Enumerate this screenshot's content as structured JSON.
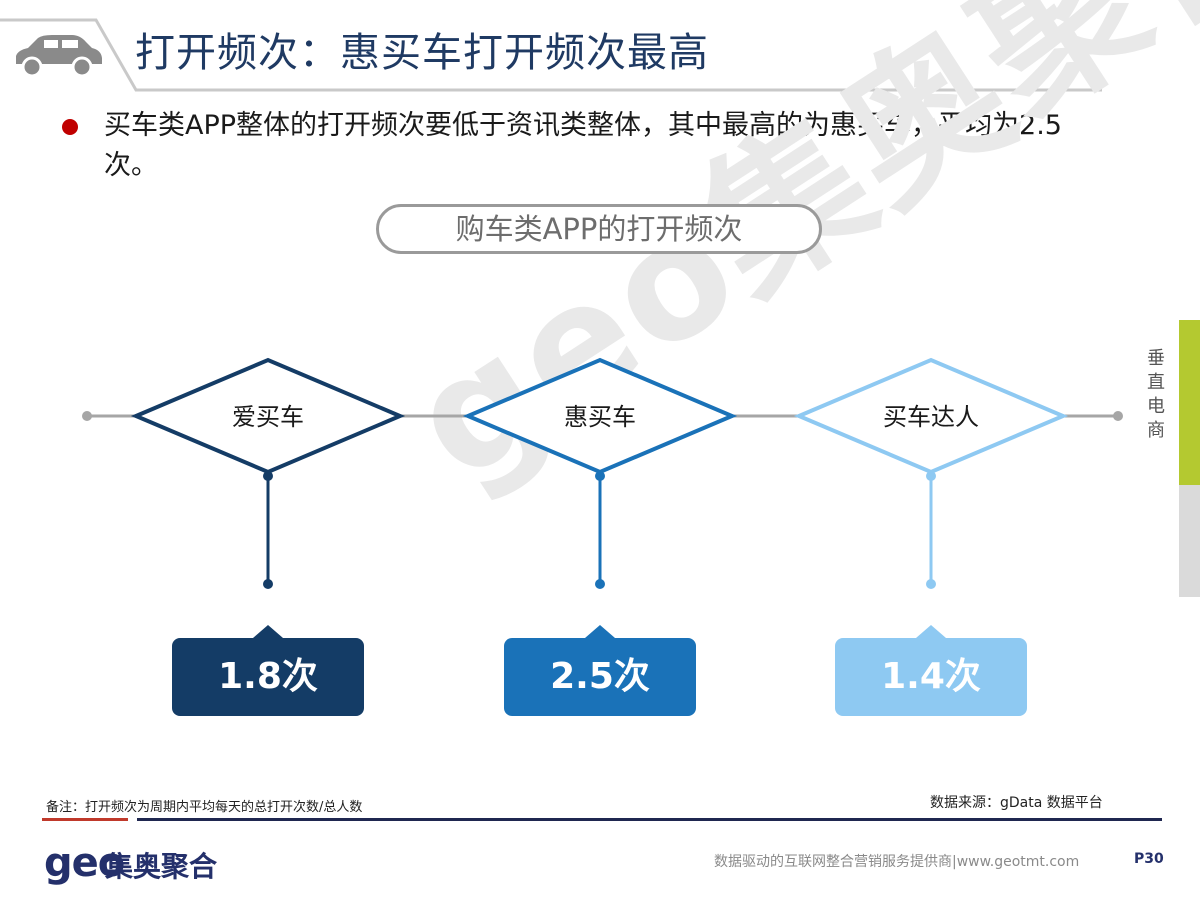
{
  "header": {
    "title": "打开频次：惠买车打开频次最高"
  },
  "bullet": {
    "text": "买车类APP整体的打开频次要低于资讯类整体，其中最高的为惠买车，平均为2.5次。"
  },
  "chart_title": "购车类APP的打开频次",
  "watermark": "geo集奥聚合",
  "chart_data": {
    "type": "table",
    "categories": [
      "爱买车",
      "惠买车",
      "买车达人"
    ],
    "values": [
      1.8,
      2.5,
      1.4
    ],
    "value_labels": [
      "1.8次",
      "2.5次",
      "1.4次"
    ],
    "colors": [
      "#143c66",
      "#1a72b8",
      "#8ec9f2"
    ]
  },
  "side_tab": {
    "label": "垂直电商"
  },
  "footer": {
    "note": "备注：打开频次为周期内平均每天的总打开次数/总人数",
    "source": "数据来源：gData  数据平台",
    "logo_latin": "geo",
    "logo_cn": "集奥聚合",
    "tagline": "数据驱动的互联网整合营销服务提供商|www.geotmt.com",
    "page": "P30"
  }
}
